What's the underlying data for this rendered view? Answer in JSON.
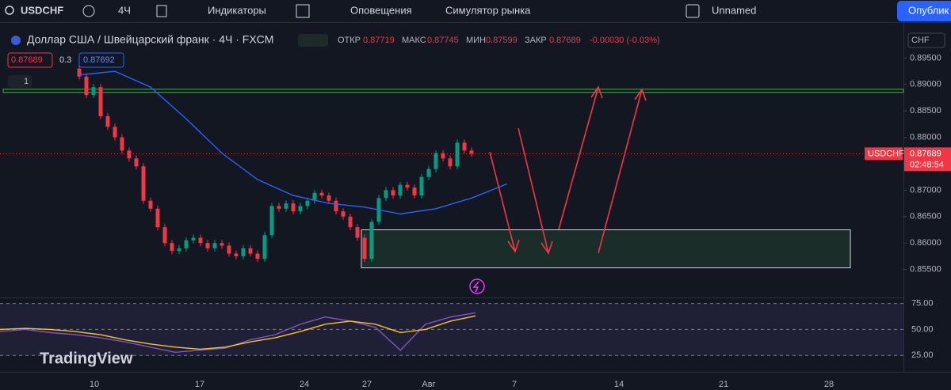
{
  "toolbar": {
    "symbol": "USDCHF",
    "interval": "4Ч",
    "indicators": "Индикаторы",
    "alerts": "Оповещения",
    "replay": "Симулятор рынка",
    "layout": "Unnamed",
    "publish": "Опублик"
  },
  "legend": {
    "title": "Доллар США / Швейцарский франк · 4Ч · FXCM",
    "open_label": "ОТКР",
    "open": "0.87719",
    "high_label": "МАКС",
    "high": "0.87745",
    "low_label": "МИН",
    "low": "0.87599",
    "close_label": "ЗАКР",
    "close": "0.87689",
    "change": "-0.00030 (-0.03%)",
    "bid": "0.87689",
    "spread": "0.3",
    "ask": "0.87692",
    "indicator_count": "1"
  },
  "logo": "TradingView",
  "chart_data": {
    "type": "candlestick",
    "currency": "CHF",
    "symbol_tag": "USDCHF",
    "last_price": 0.87689,
    "last_price_label": "0.87689",
    "countdown": "02:48:54",
    "up_color": "#089981",
    "down_color": "#f23645",
    "ma_color": "#2962ff",
    "open": [
      0.893,
      0.8915,
      0.888,
      0.8895,
      0.884,
      0.882,
      0.88,
      0.8775,
      0.876,
      0.8745,
      0.868,
      0.8665,
      0.863,
      0.86,
      0.8585,
      0.859,
      0.8605,
      0.861,
      0.86,
      0.859,
      0.86,
      0.8595,
      0.858,
      0.8575,
      0.859,
      0.858,
      0.857,
      0.8615,
      0.867,
      0.8665,
      0.8675,
      0.866,
      0.867,
      0.868,
      0.8695,
      0.869,
      0.868,
      0.866,
      0.865,
      0.863,
      0.861,
      0.857,
      0.864,
      0.8685,
      0.87,
      0.869,
      0.871,
      0.8705,
      0.869,
      0.8725,
      0.874,
      0.877,
      0.876,
      0.8745,
      0.879,
      0.8775
    ],
    "close": [
      0.8915,
      0.888,
      0.8895,
      0.884,
      0.882,
      0.88,
      0.8775,
      0.876,
      0.8745,
      0.868,
      0.8665,
      0.863,
      0.86,
      0.8585,
      0.859,
      0.8605,
      0.861,
      0.86,
      0.859,
      0.86,
      0.8595,
      0.858,
      0.8575,
      0.859,
      0.858,
      0.857,
      0.8615,
      0.867,
      0.8665,
      0.8675,
      0.866,
      0.867,
      0.868,
      0.8695,
      0.869,
      0.868,
      0.866,
      0.865,
      0.863,
      0.861,
      0.857,
      0.864,
      0.8685,
      0.87,
      0.869,
      0.871,
      0.8705,
      0.869,
      0.8725,
      0.874,
      0.877,
      0.876,
      0.8745,
      0.879,
      0.8775,
      0.8769
    ],
    "ma": [
      0.8918,
      0.8925,
      0.8895,
      0.8835,
      0.877,
      0.872,
      0.869,
      0.8675,
      0.8668,
      0.8655,
      0.8665,
      0.8685,
      0.8712
    ],
    "level": 0.8888,
    "zone": [
      0.8625,
      0.8553
    ],
    "ylim": [
      0.85,
      0.9
    ],
    "yticks": [
      {
        "value": 0.855,
        "label": "0.85500"
      },
      {
        "value": 0.86,
        "label": "0.86000"
      },
      {
        "value": 0.865,
        "label": "0.86500"
      },
      {
        "value": 0.87,
        "label": "0.87000"
      },
      {
        "value": 0.875,
        "label": "0.87500"
      },
      {
        "value": 0.88,
        "label": "0.88000"
      },
      {
        "value": 0.885,
        "label": "0.88500"
      },
      {
        "value": 0.89,
        "label": "0.89000"
      },
      {
        "value": 0.895,
        "label": "0.89500"
      }
    ],
    "categories": [
      "10",
      "17",
      "24",
      "27",
      "Авг",
      "7",
      "14",
      "21",
      "28"
    ],
    "rsi": [
      48,
      50,
      47,
      45,
      42,
      38,
      33,
      28,
      30,
      32,
      40,
      45,
      55,
      62,
      58,
      52,
      30,
      55,
      62,
      66
    ],
    "rsi_ma": [
      50,
      51,
      50,
      48,
      45,
      40,
      36,
      33,
      31,
      33,
      38,
      42,
      48,
      55,
      58,
      55,
      47,
      50,
      58,
      63
    ],
    "rsi_ylim": [
      10,
      80
    ],
    "rsi_ticks": [
      {
        "value": 25,
        "label": "25.00"
      },
      {
        "value": 50,
        "label": "50.00"
      },
      {
        "value": 75,
        "label": "75.00"
      }
    ]
  }
}
